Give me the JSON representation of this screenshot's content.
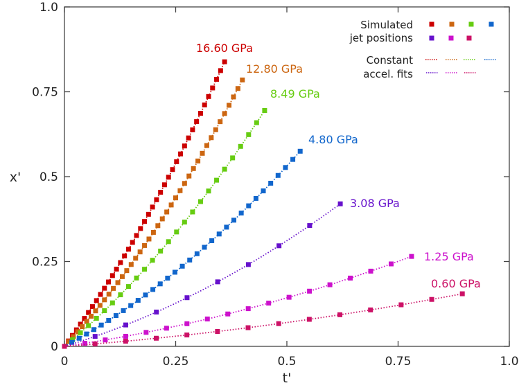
{
  "chart_data": {
    "type": "scatter",
    "title": "",
    "xlabel": "t'",
    "ylabel": "x'",
    "xlim": [
      0,
      1.0
    ],
    "ylim": [
      0,
      1.0
    ],
    "xticks": [
      "0",
      "0.25",
      "0.5",
      "0.75",
      "1.0"
    ],
    "yticks": [
      "0",
      "0.25",
      "0.5",
      "0.75",
      "1.0"
    ],
    "xtick_values": [
      0,
      0.25,
      0.5,
      0.75,
      1.0
    ],
    "ytick_values": [
      0,
      0.25,
      0.5,
      0.75,
      1.0
    ],
    "grid": false,
    "legend": {
      "placement": "top-right",
      "markers_label_1": "Simulated",
      "markers_label_2": "jet positions",
      "lines_label_1": "Constant",
      "lines_label_2": "accel. fits"
    },
    "series": [
      {
        "name": "16.60 GPa",
        "color": "#cc0000",
        "t_step": 0.009,
        "n_points": 41,
        "fit_v": 1.76,
        "fit_a": 1.58
      },
      {
        "name": "12.80 GPa",
        "color": "#cc6611",
        "t_step": 0.01,
        "n_points": 41,
        "fit_v": 1.396,
        "fit_a": 1.415
      },
      {
        "name": "8.49 GPa",
        "color": "#66cc11",
        "t_step": 0.018,
        "n_points": 26,
        "fit_v": 1.074,
        "fit_a": 1.045
      },
      {
        "name": "4.80 GPa",
        "color": "#1166cc",
        "t_step": 0.01656,
        "n_points": 33,
        "fit_v": 0.698,
        "fit_a": 0.73
      },
      {
        "name": "3.08 GPa",
        "color": "#6611cc",
        "t_step": 0.0689,
        "n_points": 10,
        "fit_v": 0.395,
        "fit_a": 0.455
      },
      {
        "name": "1.25 GPa",
        "color": "#cc11cc",
        "t_step": 0.0459,
        "n_points": 18,
        "fit_v": 0.189,
        "fit_a": 0.193
      },
      {
        "name": "0.60 GPa",
        "color": "#cc1166",
        "t_step": 0.0688,
        "n_points": 14,
        "fit_v": 0.099,
        "fit_a": 0.083
      }
    ]
  }
}
